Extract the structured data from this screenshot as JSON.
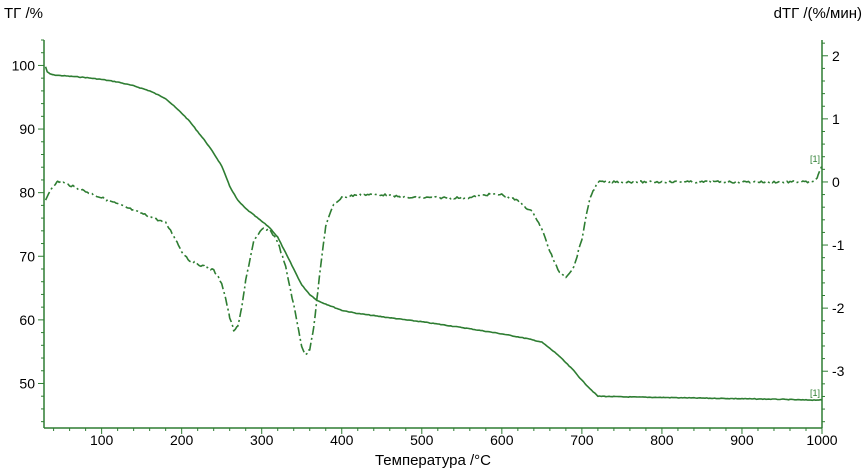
{
  "colors": {
    "axis": "#2e7d32",
    "curve": "#2e7d32",
    "text": "#000000"
  },
  "chart_data": {
    "type": "line",
    "title": "",
    "xlabel": "Температура /°C",
    "ylabel_left": "ТГ /%",
    "ylabel_right": "dТГ /(%/мин)",
    "xlim": [
      28,
      1000
    ],
    "ylim_left": [
      43,
      104
    ],
    "ylim_right": [
      -3.9,
      2.25
    ],
    "x_ticks": [
      100,
      200,
      300,
      400,
      500,
      600,
      700,
      800,
      900,
      1000
    ],
    "y_ticks_left": [
      50,
      60,
      70,
      80,
      90,
      100
    ],
    "y_ticks_right": [
      -3,
      -2,
      -1,
      0,
      1,
      2
    ],
    "grid": false,
    "series": [
      {
        "axis": "left",
        "style": "solid",
        "marker_label": "[1]",
        "x": [
          30,
          32,
          35,
          40,
          50,
          60,
          80,
          100,
          120,
          140,
          160,
          180,
          200,
          210,
          220,
          230,
          240,
          250,
          260,
          270,
          280,
          290,
          300,
          310,
          320,
          330,
          340,
          350,
          360,
          370,
          380,
          390,
          400,
          420,
          450,
          480,
          500,
          550,
          600,
          630,
          650,
          670,
          690,
          700,
          710,
          720,
          750,
          800,
          850,
          900,
          950,
          980,
          1000
        ],
        "y": [
          99.8,
          99.0,
          98.7,
          98.5,
          98.4,
          98.3,
          98.1,
          97.8,
          97.4,
          96.8,
          96.0,
          94.8,
          92.5,
          91.2,
          89.6,
          88.0,
          86.2,
          84.2,
          81.0,
          78.8,
          77.5,
          76.5,
          75.5,
          74.5,
          73.0,
          70.5,
          68.0,
          65.5,
          64.0,
          63.0,
          62.5,
          62.0,
          61.5,
          61.0,
          60.5,
          60.0,
          59.7,
          58.8,
          57.8,
          57.1,
          56.5,
          54.5,
          52.0,
          50.5,
          49.2,
          48.0,
          47.9,
          47.8,
          47.7,
          47.6,
          47.5,
          47.4,
          47.4
        ]
      },
      {
        "axis": "right",
        "style": "dash-dot",
        "marker_label": "[1]",
        "x": [
          30,
          35,
          40,
          45,
          50,
          60,
          80,
          100,
          120,
          140,
          160,
          180,
          190,
          200,
          210,
          220,
          230,
          240,
          250,
          255,
          260,
          265,
          270,
          275,
          280,
          290,
          300,
          310,
          320,
          330,
          340,
          350,
          355,
          360,
          365,
          370,
          375,
          380,
          390,
          400,
          420,
          450,
          480,
          500,
          530,
          560,
          580,
          600,
          620,
          640,
          650,
          660,
          670,
          680,
          690,
          700,
          710,
          720,
          750,
          800,
          850,
          900,
          950,
          980,
          990,
          995,
          1000
        ],
        "y": [
          -0.3,
          -0.15,
          -0.05,
          0.0,
          0.0,
          -0.05,
          -0.15,
          -0.25,
          -0.35,
          -0.45,
          -0.55,
          -0.65,
          -0.85,
          -1.1,
          -1.25,
          -1.3,
          -1.35,
          -1.4,
          -1.6,
          -1.85,
          -2.15,
          -2.35,
          -2.3,
          -2.0,
          -1.55,
          -0.95,
          -0.75,
          -0.75,
          -0.95,
          -1.35,
          -1.95,
          -2.6,
          -2.75,
          -2.65,
          -2.3,
          -1.75,
          -1.2,
          -0.7,
          -0.35,
          -0.25,
          -0.2,
          -0.2,
          -0.25,
          -0.25,
          -0.25,
          -0.25,
          -0.2,
          -0.2,
          -0.3,
          -0.5,
          -0.75,
          -1.1,
          -1.4,
          -1.5,
          -1.35,
          -0.9,
          -0.25,
          0.0,
          0.0,
          0.0,
          0.0,
          0.0,
          0.0,
          0.0,
          0.0,
          0.1,
          0.25
        ]
      }
    ]
  }
}
